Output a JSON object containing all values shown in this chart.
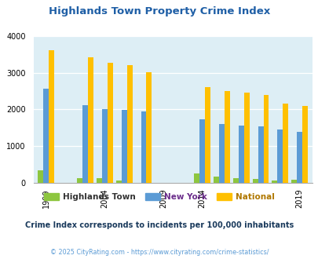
{
  "title": "Highlands Town Property Crime Index",
  "subtitle": "Crime Index corresponds to incidents per 100,000 inhabitants",
  "footer": "© 2025 CityRating.com - https://www.cityrating.com/crime-statistics/",
  "highlands_town": [
    330,
    130,
    130,
    60,
    0,
    0,
    260,
    155,
    130,
    110,
    65,
    80
  ],
  "new_york": [
    2560,
    2110,
    2000,
    1990,
    1950,
    0,
    1720,
    1600,
    1560,
    1530,
    1450,
    1380
  ],
  "national": [
    3620,
    3430,
    3280,
    3200,
    3020,
    0,
    2600,
    2500,
    2460,
    2390,
    2170,
    2100
  ],
  "group_positions": [
    0,
    2,
    3,
    4,
    5,
    6,
    8,
    9,
    10,
    11,
    12,
    13
  ],
  "colors": {
    "highlands_town": "#8dc63f",
    "new_york": "#5b9bd5",
    "national": "#ffc000"
  },
  "tick_labels": [
    "1999",
    "2004",
    "2009",
    "2014",
    "2019"
  ],
  "tick_positions": [
    0,
    3,
    6,
    8,
    13
  ],
  "ylim": [
    0,
    4000
  ],
  "yticks": [
    0,
    1000,
    2000,
    3000,
    4000
  ],
  "bg_color": "#ddeef5",
  "title_color": "#1f5fa6",
  "legend_ht_color": "#333333",
  "legend_ny_color": "#6b2d8b",
  "legend_nat_color": "#b07800",
  "subtitle_color": "#1a3a5c",
  "footer_color": "#5b9bd5"
}
